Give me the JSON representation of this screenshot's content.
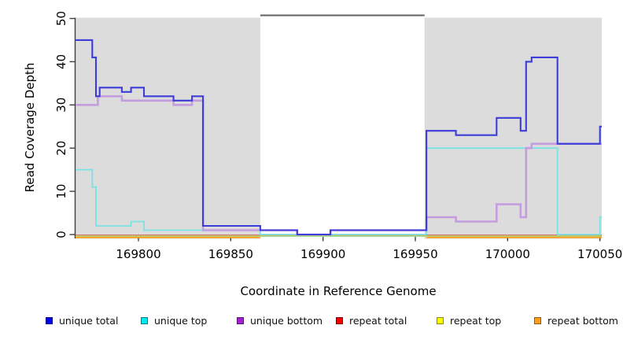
{
  "figure": {
    "bg_color": "#ffffff",
    "plot_bg_color": "#ffffff"
  },
  "chart_data": {
    "type": "line",
    "subtype": "step-after-coverage-plot",
    "title": "",
    "xlabel": "Coordinate in Reference Genome",
    "ylabel": "Read Coverage Depth",
    "xlim": [
      169766,
      170051
    ],
    "ylim": [
      0,
      50
    ],
    "x_ticks": [
      169800,
      169850,
      169900,
      169950,
      170000,
      170050
    ],
    "y_ticks": [
      0,
      10,
      20,
      30,
      40,
      50
    ],
    "grid": false,
    "legend_position": "bottom",
    "shaded_regions": [
      {
        "start": 169766,
        "end": 169866,
        "color": "#dcdcdc"
      },
      {
        "start": 169955,
        "end": 170051,
        "color": "#dcdcdc"
      }
    ],
    "gap_top_rule": {
      "start": 169866,
      "end": 169955,
      "color": "#5f5f5f"
    },
    "axis_color": "#3d3d3d",
    "tick_label_color": "#000000",
    "series": [
      {
        "id": "unique-total",
        "label": "unique total",
        "line_color": "#3c3cd8",
        "legend_color": "#0000f0",
        "width": 2.1,
        "y_offset": 0,
        "z": 7,
        "points": [
          [
            169766,
            45
          ],
          [
            169775,
            41
          ],
          [
            169777,
            32
          ],
          [
            169779,
            34
          ],
          [
            169791,
            33
          ],
          [
            169796,
            34
          ],
          [
            169803,
            32
          ],
          [
            169819,
            31
          ],
          [
            169829,
            32
          ],
          [
            169835,
            2
          ],
          [
            169866,
            1
          ],
          [
            169886,
            0
          ],
          [
            169904,
            1
          ],
          [
            169956,
            24
          ],
          [
            169972,
            23
          ],
          [
            169994,
            27
          ],
          [
            170007,
            24
          ],
          [
            170010,
            40
          ],
          [
            170013,
            41
          ],
          [
            170027,
            21
          ],
          [
            170050,
            25
          ]
        ]
      },
      {
        "id": "unique-top",
        "label": "unique top",
        "line_color": "#79e3e3",
        "legend_color": "#00e8f0",
        "width": 1.8,
        "y_offset": 0,
        "z": 5,
        "points": [
          [
            169766,
            15
          ],
          [
            169775,
            11
          ],
          [
            169777,
            2
          ],
          [
            169796,
            3
          ],
          [
            169803,
            1
          ],
          [
            169866,
            0
          ],
          [
            169956,
            20
          ],
          [
            170027,
            0
          ],
          [
            170050,
            4
          ]
        ]
      },
      {
        "id": "unique-bottom",
        "label": "unique bottom",
        "line_color": "#c49ce0",
        "legend_color": "#a11fd4",
        "width": 2.6,
        "y_offset": 0,
        "z": 6,
        "points": [
          [
            169766,
            30
          ],
          [
            169778,
            32
          ],
          [
            169791,
            31
          ],
          [
            169819,
            30
          ],
          [
            169829,
            31
          ],
          [
            169835,
            1
          ],
          [
            169886,
            0
          ],
          [
            169904,
            1
          ],
          [
            169956,
            4
          ],
          [
            169972,
            3
          ],
          [
            169994,
            7
          ],
          [
            170007,
            4
          ],
          [
            170010,
            20
          ],
          [
            170013,
            21
          ]
        ]
      },
      {
        "id": "repeat-total",
        "label": "repeat total",
        "line_color": "#dd0000",
        "legend_color": "#f00000",
        "width": 1.4,
        "y_offset": 1.2,
        "z": 1,
        "points": [
          [
            169766,
            0
          ]
        ]
      },
      {
        "id": "repeat-top",
        "label": "repeat top",
        "line_color": "#f0f000",
        "legend_color": "#ffff00",
        "width": 1.4,
        "y_offset": 1.8,
        "z": 2,
        "points": [
          [
            169766,
            0
          ]
        ]
      },
      {
        "id": "repeat-bottom",
        "label": "repeat bottom",
        "line_color": "#ff9e1b",
        "legend_color": "#ffa022",
        "width": 2.0,
        "y_offset": 3.6,
        "z": 4,
        "segments": [
          [
            [
              169766,
              0
            ],
            [
              169866,
              0
            ]
          ],
          [
            [
              169956,
              0
            ],
            [
              170051,
              0
            ]
          ]
        ]
      }
    ],
    "baseline_artifact": {
      "note": "pale green zero line spanning full axis, visible in unshaded gap",
      "color": "#a0dca0",
      "width": 1.6,
      "y_offset": 2.2,
      "from": 169766,
      "to": 170051,
      "value": 0
    }
  }
}
